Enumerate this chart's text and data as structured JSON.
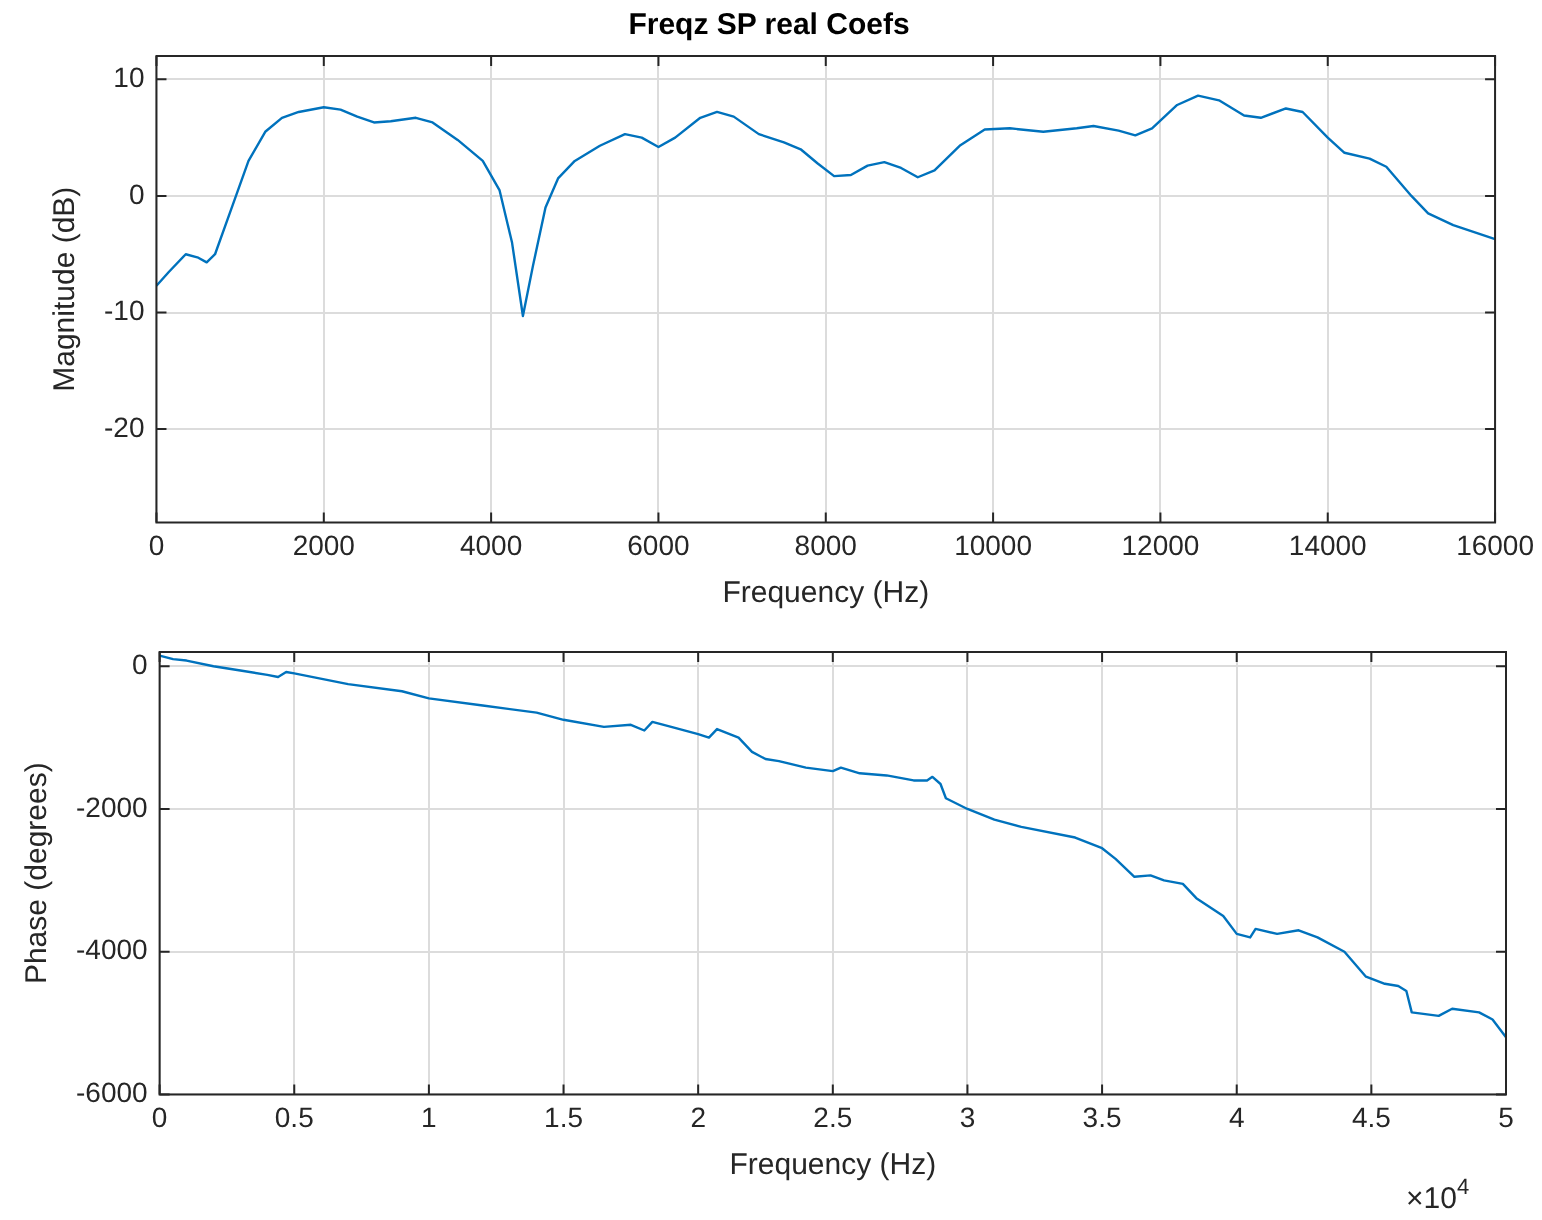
{
  "chart_data": [
    {
      "type": "line",
      "title": "Freqz SP real Coefs",
      "xlabel": "Frequency (Hz)",
      "ylabel": "Magnitude (dB)",
      "xlim": [
        0,
        16000
      ],
      "xticks": [
        0,
        2000,
        4000,
        6000,
        8000,
        10000,
        12000,
        14000,
        16000
      ],
      "ylim": [
        -28,
        12
      ],
      "yticks": [
        -20,
        -10,
        0,
        10
      ],
      "grid": true,
      "legend": false,
      "marker": "none",
      "line_style": "solid",
      "x": [
        0,
        150,
        350,
        500,
        600,
        700,
        900,
        1100,
        1300,
        1500,
        1700,
        2000,
        2200,
        2400,
        2600,
        2800,
        3100,
        3300,
        3600,
        3900,
        4100,
        4250,
        4380,
        4500,
        4650,
        4800,
        5000,
        5300,
        5600,
        5800,
        6000,
        6200,
        6500,
        6700,
        6900,
        7200,
        7500,
        7700,
        7900,
        8100,
        8300,
        8500,
        8700,
        8900,
        9100,
        9300,
        9600,
        9900,
        10200,
        10600,
        11000,
        11200,
        11500,
        11700,
        11900,
        12200,
        12450,
        12700,
        13000,
        13200,
        13500,
        13700,
        14000,
        14200,
        14500,
        14700,
        15000,
        15200,
        15500,
        16000
      ],
      "series": [
        {
          "color": "#0072bd",
          "values": [
            -7.7,
            -6.5,
            -5,
            -5.3,
            -5.7,
            -5,
            -1,
            3,
            5.5,
            6.7,
            7.2,
            7.6,
            7.4,
            6.8,
            6.3,
            6.4,
            6.7,
            6.3,
            4.8,
            3,
            0.5,
            -4,
            -10.3,
            -6,
            -1,
            1.5,
            3,
            4.3,
            5.3,
            5,
            4.2,
            5,
            6.7,
            7.2,
            6.8,
            5.3,
            4.6,
            4,
            2.8,
            1.7,
            1.8,
            2.6,
            2.9,
            2.4,
            1.6,
            2.2,
            4.3,
            5.7,
            5.8,
            5.5,
            5.8,
            6,
            5.6,
            5.2,
            5.8,
            7.8,
            8.6,
            8.2,
            6.9,
            6.7,
            7.5,
            7.2,
            5,
            3.7,
            3.2,
            2.5,
            0,
            -1.5,
            -2.5,
            -3.7
          ]
        }
      ]
    },
    {
      "type": "line",
      "xlabel": "Frequency (Hz)",
      "ylabel": "Phase (degrees)",
      "xlim": [
        0,
        5
      ],
      "xticks": [
        0,
        0.5,
        1,
        1.5,
        2,
        2.5,
        3,
        3.5,
        4,
        4.5,
        5
      ],
      "ylim": [
        -6000,
        200
      ],
      "yticks": [
        -6000,
        -4000,
        -2000,
        0
      ],
      "grid": true,
      "legend": false,
      "marker": "none",
      "line_style": "solid",
      "annotations": [
        "×10$^{4}$"
      ],
      "x": [
        0,
        0.05,
        0.1,
        0.2,
        0.3,
        0.4,
        0.44,
        0.47,
        0.5,
        0.7,
        0.9,
        1,
        1.2,
        1.4,
        1.5,
        1.65,
        1.75,
        1.8,
        1.83,
        1.9,
        2,
        2.04,
        2.07,
        2.15,
        2.2,
        2.25,
        2.3,
        2.4,
        2.5,
        2.53,
        2.6,
        2.7,
        2.8,
        2.85,
        2.87,
        2.9,
        2.92,
        3,
        3.1,
        3.2,
        3.4,
        3.5,
        3.55,
        3.62,
        3.68,
        3.73,
        3.8,
        3.85,
        3.95,
        4,
        4.05,
        4.07,
        4.15,
        4.23,
        4.3,
        4.4,
        4.48,
        4.55,
        4.6,
        4.63,
        4.65,
        4.75,
        4.8,
        4.9,
        4.95,
        5
      ],
      "series": [
        {
          "color": "#0072bd",
          "values": [
            150,
            100,
            80,
            0,
            -60,
            -120,
            -150,
            -80,
            -100,
            -250,
            -350,
            -450,
            -550,
            -650,
            -750,
            -850,
            -820,
            -900,
            -780,
            -850,
            -950,
            -1000,
            -880,
            -1000,
            -1200,
            -1300,
            -1330,
            -1420,
            -1470,
            -1420,
            -1500,
            -1530,
            -1600,
            -1600,
            -1550,
            -1650,
            -1850,
            -2000,
            -2150,
            -2250,
            -2400,
            -2550,
            -2700,
            -2950,
            -2930,
            -3000,
            -3050,
            -3250,
            -3500,
            -3750,
            -3800,
            -3680,
            -3750,
            -3700,
            -3800,
            -4000,
            -4350,
            -4450,
            -4480,
            -4550,
            -4850,
            -4900,
            -4800,
            -4850,
            -4950,
            -5200
          ]
        }
      ]
    }
  ]
}
